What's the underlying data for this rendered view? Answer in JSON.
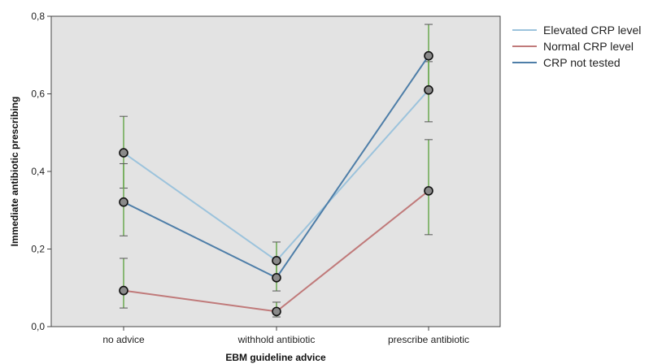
{
  "chart_data": {
    "type": "line",
    "title": "",
    "xlabel": "EBM guideline advice",
    "ylabel": "Immediate antibiotic prescribing",
    "categories": [
      "no advice",
      "withhold antibiotic",
      "prescribe antibiotic"
    ],
    "ylim": [
      0,
      0.8
    ],
    "yticks": [
      0,
      0.2,
      0.4,
      0.6,
      0.8
    ],
    "ytick_labels": [
      "0,0",
      "0,2",
      "0,4",
      "0,6",
      "0,8"
    ],
    "grid": false,
    "legend_position": "right",
    "error_bar_color": "#6aa84f",
    "series": [
      {
        "name": "Elevated CRP level",
        "color": "#9cc3dc",
        "values": [
          0.448,
          0.17,
          0.61
        ],
        "err_low": [
          0.357,
          0.123,
          0.528
        ],
        "err_high": [
          0.542,
          0.218,
          0.683
        ]
      },
      {
        "name": "Normal CRP level",
        "color": "#c07a7a",
        "values": [
          0.093,
          0.039,
          0.35
        ],
        "err_low": [
          0.048,
          0.025,
          0.237
        ],
        "err_high": [
          0.176,
          0.063,
          0.482
        ]
      },
      {
        "name": "CRP not tested",
        "color": "#4e7ea8",
        "values": [
          0.321,
          0.126,
          0.698
        ],
        "err_low": [
          0.234,
          0.092,
          0.61
        ],
        "err_high": [
          0.42,
          0.17,
          0.779
        ]
      }
    ]
  }
}
